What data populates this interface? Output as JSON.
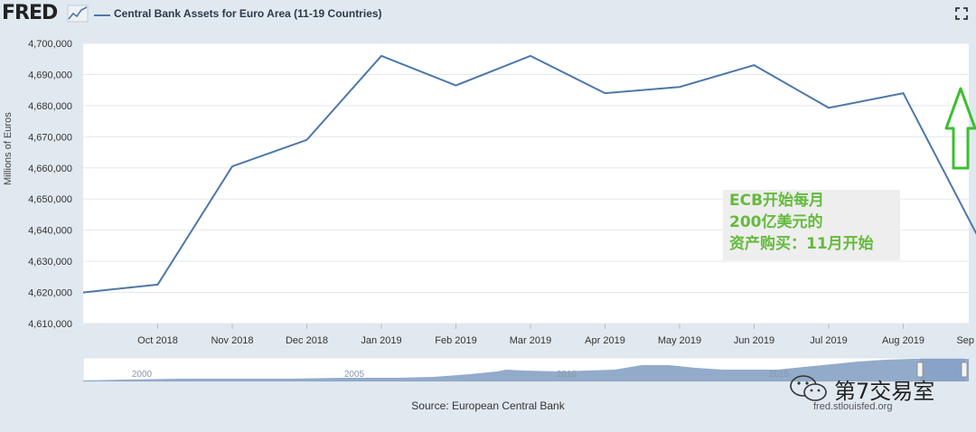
{
  "header": {
    "logo_text": "FRED",
    "series_title": "Central Bank Assets for Euro Area (11-19 Countries)",
    "fullscreen_icon": "fullscreen-icon"
  },
  "chart_data": {
    "type": "line",
    "title": "Central Bank Assets for Euro Area (11-19 Countries)",
    "ylabel": "Millions of Euros",
    "xlabel": "",
    "x": [
      "Sep 2018",
      "Oct 2018",
      "Nov 2018",
      "Dec 2018",
      "Jan 2019",
      "Feb 2019",
      "Mar 2019",
      "Apr 2019",
      "May 2019",
      "Jun 2019",
      "Jul 2019",
      "Aug 2019",
      "Sep 2019"
    ],
    "x_tick_labels": [
      "Oct 2018",
      "Nov 2018",
      "Dec 2018",
      "Jan 2019",
      "Feb 2019",
      "Mar 2019",
      "Apr 2019",
      "May 2019",
      "Jun 2019",
      "Jul 2019",
      "Aug 2019",
      "Sep 2019"
    ],
    "series": [
      {
        "name": "Central Bank Assets for Euro Area (11-19 Countries)",
        "color": "#4d78a8",
        "values": [
          4620000,
          4622500,
          4660500,
          4669000,
          4696000,
          4686500,
          4696000,
          4684000,
          4686000,
          4693000,
          4679300,
          4684000,
          4638000
        ]
      }
    ],
    "ylim": [
      4610000,
      4700000
    ],
    "y_ticks": [
      "4,610,000",
      "4,620,000",
      "4,630,000",
      "4,640,000",
      "4,650,000",
      "4,660,000",
      "4,670,000",
      "4,680,000",
      "4,690,000",
      "4,700,000"
    ],
    "grid": true,
    "navigator": {
      "year_labels": [
        "2000",
        "2005",
        "2010",
        "2015"
      ]
    }
  },
  "annotation": {
    "lines": [
      "ECB开始每月",
      "200亿美元的",
      "资产购买：11月开始"
    ],
    "color": "#5cb832",
    "arrow_icon": "up-arrow-icon"
  },
  "footer": {
    "source": "Source: European Central Bank",
    "site": "fred.stlouisfed.org"
  },
  "watermark": {
    "text": "第7交易室",
    "icon": "wechat-icon"
  }
}
